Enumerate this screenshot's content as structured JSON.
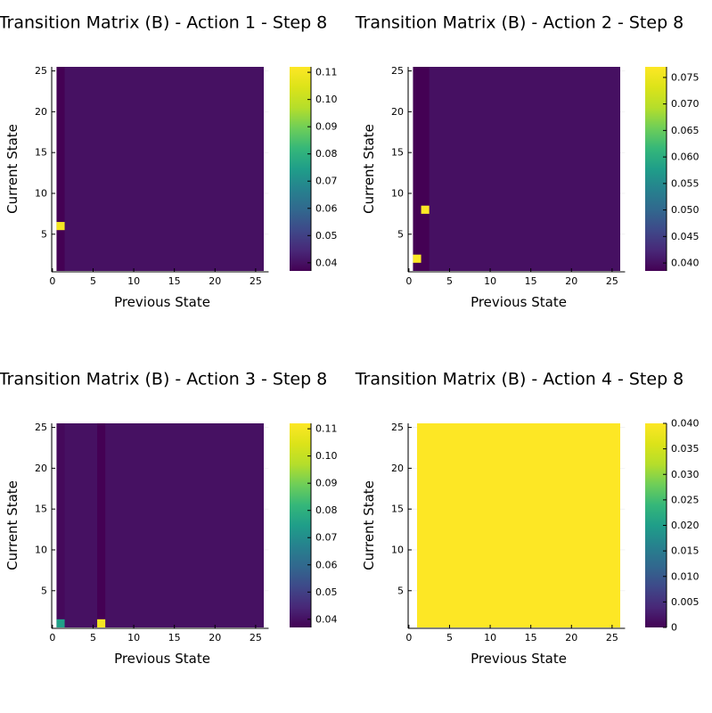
{
  "chart_data": [
    {
      "type": "heatmap",
      "title": "Transition Matrix (B) - Action 1 - Step 8",
      "xlabel": "Previous State",
      "ylabel": "Current State",
      "x_range": [
        1,
        25
      ],
      "y_range": [
        1,
        25
      ],
      "xticks": [
        0,
        5,
        10,
        15,
        20,
        25
      ],
      "yticks": [
        5,
        10,
        15,
        20,
        25
      ],
      "background_value": 0.04,
      "columns": [
        {
          "x": 1,
          "value": 0.037
        }
      ],
      "cells": [
        {
          "x": 1,
          "y": 6,
          "value": 0.11
        }
      ],
      "colorbar": {
        "min": 0.037,
        "max": 0.112,
        "ticks": [
          0.04,
          0.05,
          0.06,
          0.07,
          0.08,
          0.09,
          0.1,
          0.11
        ],
        "tick_labels": [
          "0.04",
          "0.05",
          "0.06",
          "0.07",
          "0.08",
          "0.09",
          "0.10",
          "0.11"
        ]
      }
    },
    {
      "type": "heatmap",
      "title": "Transition Matrix (B) - Action 2 - Step 8",
      "xlabel": "Previous State",
      "ylabel": "Current State",
      "x_range": [
        1,
        25
      ],
      "y_range": [
        1,
        25
      ],
      "xticks": [
        0,
        5,
        10,
        15,
        20,
        25
      ],
      "yticks": [
        5,
        10,
        15,
        20,
        25
      ],
      "background_value": 0.04,
      "columns": [
        {
          "x": 1,
          "value": 0.0385
        },
        {
          "x": 2,
          "value": 0.0385
        }
      ],
      "cells": [
        {
          "x": 1,
          "y": 2,
          "value": 0.077
        },
        {
          "x": 2,
          "y": 8,
          "value": 0.077
        }
      ],
      "colorbar": {
        "min": 0.0385,
        "max": 0.077,
        "ticks": [
          0.04,
          0.045,
          0.05,
          0.055,
          0.06,
          0.065,
          0.07,
          0.075
        ],
        "tick_labels": [
          "0.040",
          "0.045",
          "0.050",
          "0.055",
          "0.060",
          "0.065",
          "0.070",
          "0.075"
        ]
      }
    },
    {
      "type": "heatmap",
      "title": "Transition Matrix (B) - Action 3 - Step 8",
      "xlabel": "Previous State",
      "ylabel": "Current State",
      "x_range": [
        1,
        25
      ],
      "y_range": [
        1,
        25
      ],
      "xticks": [
        0,
        5,
        10,
        15,
        20,
        25
      ],
      "yticks": [
        5,
        10,
        15,
        20,
        25
      ],
      "background_value": 0.04,
      "columns": [
        {
          "x": 1,
          "value": 0.0385
        },
        {
          "x": 6,
          "value": 0.037
        }
      ],
      "cells": [
        {
          "x": 1,
          "y": 1,
          "value": 0.075
        },
        {
          "x": 6,
          "y": 1,
          "value": 0.11
        }
      ],
      "colorbar": {
        "min": 0.037,
        "max": 0.112,
        "ticks": [
          0.04,
          0.05,
          0.06,
          0.07,
          0.08,
          0.09,
          0.1,
          0.11
        ],
        "tick_labels": [
          "0.04",
          "0.05",
          "0.06",
          "0.07",
          "0.08",
          "0.09",
          "0.10",
          "0.11"
        ]
      }
    },
    {
      "type": "heatmap",
      "title": "Transition Matrix (B) - Action 4 - Step 8",
      "xlabel": "Previous State",
      "ylabel": "Current State",
      "x_range": [
        1,
        25
      ],
      "y_range": [
        1,
        25
      ],
      "xticks": [
        0,
        5,
        10,
        15,
        20,
        25
      ],
      "yticks": [
        5,
        10,
        15,
        20,
        25
      ],
      "background_value": 0.04,
      "columns": [],
      "cells": [],
      "colorbar": {
        "min": 0,
        "max": 0.04,
        "ticks": [
          0,
          0.005,
          0.01,
          0.015,
          0.02,
          0.025,
          0.03,
          0.035,
          0.04
        ],
        "tick_labels": [
          "0",
          "0.005",
          "0.010",
          "0.015",
          "0.020",
          "0.025",
          "0.030",
          "0.035",
          "0.040"
        ]
      }
    }
  ]
}
